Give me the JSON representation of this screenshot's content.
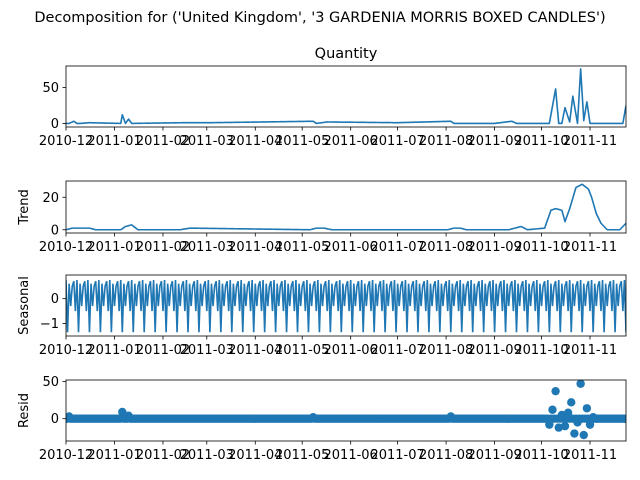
{
  "figure": {
    "suptitle": "Decomposition for ('United Kingdom', '3 GARDENIA MORRIS BOXED CANDLES')"
  },
  "colors": {
    "series": "#1f77b4",
    "axes": "#000000",
    "background": "#ffffff"
  },
  "chart_data": [
    {
      "type": "line",
      "title": "Quantity",
      "ylabel": "",
      "xlim": [
        "2010-12-01",
        "2011-11-24"
      ],
      "ylim": [
        -5,
        80
      ],
      "yticks": [
        0,
        50
      ],
      "xticks": [
        "2010-12",
        "2011-01",
        "2011-02",
        "2011-03",
        "2011-04",
        "2011-05",
        "2011-06",
        "2011-07",
        "2011-08",
        "2011-09",
        "2011-10",
        "2011-11"
      ],
      "grid": false,
      "x": [
        "2010-12-01",
        "2010-12-03",
        "2010-12-06",
        "2010-12-08",
        "2010-12-10",
        "2010-12-16",
        "2011-01-05",
        "2011-01-06",
        "2011-01-08",
        "2011-01-10",
        "2011-01-12",
        "2011-02-14",
        "2011-03-03",
        "2011-05-08",
        "2011-05-10",
        "2011-05-17",
        "2011-07-01",
        "2011-08-04",
        "2011-08-06",
        "2011-09-01",
        "2011-09-12",
        "2011-09-15",
        "2011-09-19",
        "2011-09-28",
        "2011-10-06",
        "2011-10-10",
        "2011-10-12",
        "2011-10-14",
        "2011-10-16",
        "2011-10-19",
        "2011-10-21",
        "2011-10-24",
        "2011-10-26",
        "2011-10-28",
        "2011-10-30",
        "2011-11-01",
        "2011-11-03",
        "2011-11-05",
        "2011-11-07",
        "2011-11-22",
        "2011-11-24"
      ],
      "y": [
        0,
        0,
        3,
        0,
        0,
        1,
        0,
        12,
        0,
        6,
        0,
        1,
        1,
        3,
        0,
        2,
        1,
        3,
        0,
        0,
        3,
        0,
        0,
        0,
        0,
        48,
        0,
        0,
        22,
        2,
        38,
        0,
        76,
        4,
        30,
        0,
        0,
        0,
        0,
        0,
        25
      ]
    },
    {
      "type": "line",
      "title": "",
      "ylabel": "Trend",
      "xlim": [
        "2010-12-01",
        "2011-11-24"
      ],
      "ylim": [
        -2,
        30
      ],
      "yticks": [
        0,
        20
      ],
      "xticks": [
        "2010-12",
        "2011-01",
        "2011-02",
        "2011-03",
        "2011-04",
        "2011-05",
        "2011-06",
        "2011-07",
        "2011-08",
        "2011-09",
        "2011-10",
        "2011-11"
      ],
      "grid": false,
      "x": [
        "2010-12-01",
        "2010-12-05",
        "2010-12-16",
        "2010-12-20",
        "2011-01-05",
        "2011-01-08",
        "2011-01-12",
        "2011-01-16",
        "2011-02-12",
        "2011-02-18",
        "2011-05-06",
        "2011-05-10",
        "2011-05-15",
        "2011-05-20",
        "2011-08-02",
        "2011-08-06",
        "2011-08-10",
        "2011-08-14",
        "2011-09-10",
        "2011-09-14",
        "2011-09-18",
        "2011-09-22",
        "2011-10-03",
        "2011-10-07",
        "2011-10-10",
        "2011-10-14",
        "2011-10-16",
        "2011-10-19",
        "2011-10-23",
        "2011-10-27",
        "2011-10-31",
        "2011-11-02",
        "2011-11-05",
        "2011-11-08",
        "2011-11-12",
        "2011-11-20",
        "2011-11-24"
      ],
      "y": [
        0,
        1,
        1,
        0,
        0,
        2,
        3,
        0,
        0,
        1,
        0,
        1,
        1,
        0,
        0,
        1,
        1,
        0,
        0,
        1,
        2,
        0,
        1,
        12,
        13,
        12,
        5,
        13,
        26,
        28,
        25,
        20,
        10,
        4,
        0,
        0,
        4
      ]
    },
    {
      "type": "line",
      "title": "",
      "ylabel": "Seasonal",
      "xlim": [
        "2010-12-01",
        "2011-11-24"
      ],
      "ylim": [
        -1.5,
        0.95
      ],
      "yticks": [
        -1,
        0
      ],
      "xticks": [
        "2010-12",
        "2011-01",
        "2011-02",
        "2011-03",
        "2011-04",
        "2011-05",
        "2011-06",
        "2011-07",
        "2011-08",
        "2011-09",
        "2011-10",
        "2011-11"
      ],
      "grid": false,
      "period_days": 7,
      "pattern": [
        0.75,
        -1.35,
        0.6,
        -0.3,
        0.5,
        0.7,
        -0.5
      ]
    },
    {
      "type": "scatter",
      "title": "",
      "ylabel": "Resid",
      "xlim": [
        "2010-12-01",
        "2011-11-24"
      ],
      "ylim": [
        -30,
        52
      ],
      "yticks": [
        0,
        50
      ],
      "xticks": [
        "2010-12",
        "2011-01",
        "2011-02",
        "2011-03",
        "2011-04",
        "2011-05",
        "2011-06",
        "2011-07",
        "2011-08",
        "2011-09",
        "2011-10",
        "2011-11"
      ],
      "grid": false,
      "x": [
        "2010-12-03",
        "2011-01-06",
        "2011-01-10",
        "2011-05-08",
        "2011-08-04",
        "2011-10-06",
        "2011-10-08",
        "2011-10-10",
        "2011-10-12",
        "2011-10-14",
        "2011-10-16",
        "2011-10-18",
        "2011-10-20",
        "2011-10-22",
        "2011-10-24",
        "2011-10-26",
        "2011-10-28",
        "2011-10-30",
        "2011-11-01",
        "2011-11-03"
      ],
      "y": [
        3,
        9,
        4,
        2,
        3,
        -8,
        12,
        37,
        -12,
        5,
        -10,
        8,
        22,
        -20,
        -5,
        47,
        -22,
        14,
        -8,
        2
      ]
    }
  ]
}
